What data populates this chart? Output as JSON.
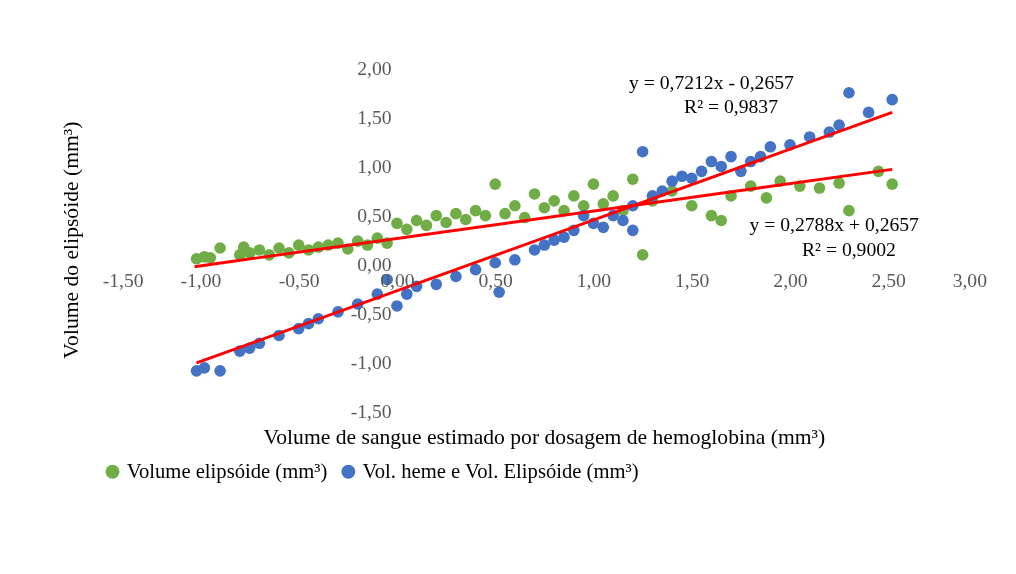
{
  "chart_data": {
    "type": "scatter",
    "xlabel": "Volume de sangue estimado por dosagem de hemoglobina (mm³)",
    "ylabel": "Volume do elipsóide (mm³)",
    "xlim": [
      -1.5,
      3.0
    ],
    "ylim": [
      -1.5,
      2.0
    ],
    "xticks": [
      {
        "value": -1.5,
        "label": "-1,50"
      },
      {
        "value": -1.0,
        "label": "-1,00"
      },
      {
        "value": -0.5,
        "label": "-0,50"
      },
      {
        "value": 0.0,
        "label": "0,00"
      },
      {
        "value": 0.5,
        "label": "0,50"
      },
      {
        "value": 1.0,
        "label": "1,00"
      },
      {
        "value": 1.5,
        "label": "1,50"
      },
      {
        "value": 2.0,
        "label": "2,00"
      },
      {
        "value": 2.5,
        "label": "2,50"
      },
      {
        "value": 3.0,
        "label": "3,00"
      }
    ],
    "yticks": [
      {
        "value": -1.5,
        "label": "-1,50"
      },
      {
        "value": -1.0,
        "label": "-1,00"
      },
      {
        "value": -0.5,
        "label": "-0,50"
      },
      {
        "value": 0.0,
        "label": "0,00"
      },
      {
        "value": 0.5,
        "label": "0,50"
      },
      {
        "value": 1.0,
        "label": "1,00"
      },
      {
        "value": 1.5,
        "label": "1,50"
      },
      {
        "value": 2.0,
        "label": "2,00"
      }
    ],
    "grid": false,
    "legend": "bottom",
    "marker": "circle",
    "annotations": [
      "y = 0,7212x - 0,2657",
      "R² = 0,9837",
      "y = 0,2788x + 0,2657",
      "R² = 0,9002"
    ],
    "series": [
      {
        "name": "Volume elipsóide (mm³)",
        "color": "#70ad47",
        "x": [
          -1.02,
          -0.98,
          -0.95,
          -0.9,
          -0.8,
          -0.78,
          -0.75,
          -0.7,
          -0.65,
          -0.6,
          -0.55,
          -0.5,
          -0.45,
          -0.4,
          -0.35,
          -0.3,
          -0.25,
          -0.2,
          -0.15,
          -0.1,
          -0.05,
          0.0,
          0.05,
          0.1,
          0.15,
          0.2,
          0.25,
          0.3,
          0.35,
          0.4,
          0.45,
          0.5,
          0.55,
          0.6,
          0.65,
          0.7,
          0.75,
          0.8,
          0.85,
          0.9,
          0.95,
          1.0,
          1.05,
          1.1,
          1.15,
          1.2,
          1.25,
          1.3,
          1.4,
          1.5,
          1.6,
          1.65,
          1.7,
          1.8,
          1.88,
          1.95,
          2.05,
          2.15,
          2.25,
          2.3,
          2.45,
          2.52
        ],
        "values": [
          0.06,
          0.08,
          0.07,
          0.17,
          0.1,
          0.18,
          0.12,
          0.15,
          0.1,
          0.17,
          0.12,
          0.2,
          0.15,
          0.18,
          0.2,
          0.22,
          0.16,
          0.24,
          0.2,
          0.27,
          0.22,
          0.42,
          0.36,
          0.45,
          0.4,
          0.5,
          0.43,
          0.52,
          0.46,
          0.55,
          0.5,
          0.82,
          0.52,
          0.6,
          0.48,
          0.72,
          0.58,
          0.65,
          0.55,
          0.7,
          0.6,
          0.82,
          0.62,
          0.7,
          0.55,
          0.87,
          0.1,
          0.65,
          0.75,
          0.6,
          0.5,
          0.45,
          0.7,
          0.8,
          0.68,
          0.85,
          0.8,
          0.78,
          0.83,
          0.55,
          0.95,
          0.82
        ]
      },
      {
        "name": "Vol. heme e Vol. Elipsóide (mm³)",
        "color": "#4472c4",
        "x": [
          -1.02,
          -0.98,
          -0.9,
          -0.8,
          -0.75,
          -0.7,
          -0.6,
          -0.5,
          -0.45,
          -0.4,
          -0.3,
          -0.2,
          -0.1,
          -0.05,
          0.0,
          0.05,
          0.1,
          0.2,
          0.3,
          0.4,
          0.5,
          0.52,
          0.6,
          0.7,
          0.75,
          0.8,
          0.85,
          0.9,
          0.95,
          1.0,
          1.05,
          1.1,
          1.15,
          1.2,
          1.2,
          1.25,
          1.3,
          1.35,
          1.4,
          1.45,
          1.5,
          1.55,
          1.6,
          1.65,
          1.7,
          1.75,
          1.8,
          1.85,
          1.9,
          2.0,
          2.1,
          2.2,
          2.25,
          2.3,
          2.4,
          2.52
        ],
        "values": [
          -1.08,
          -1.05,
          -1.08,
          -0.88,
          -0.85,
          -0.8,
          -0.72,
          -0.65,
          -0.6,
          -0.55,
          -0.48,
          -0.4,
          -0.3,
          -0.15,
          -0.42,
          -0.3,
          -0.22,
          -0.2,
          -0.12,
          -0.05,
          0.02,
          -0.28,
          0.05,
          0.15,
          0.2,
          0.25,
          0.28,
          0.35,
          0.5,
          0.42,
          0.38,
          0.5,
          0.45,
          0.6,
          0.35,
          1.15,
          0.7,
          0.75,
          0.85,
          0.9,
          0.88,
          0.95,
          1.05,
          1.0,
          1.1,
          0.95,
          1.05,
          1.1,
          1.2,
          1.22,
          1.3,
          1.35,
          1.42,
          1.75,
          1.55,
          1.68
        ]
      },
      {
        "color": "#ff0000",
        "type": "line",
        "marker": "none",
        "x": [
          -1.02,
          2.52
        ],
        "values": [
          -1.0,
          1.55
        ]
      },
      {
        "color": "#ff0000",
        "type": "line",
        "marker": "none",
        "x": [
          -1.03,
          2.52
        ],
        "values": [
          -0.02,
          0.97
        ]
      }
    ]
  }
}
